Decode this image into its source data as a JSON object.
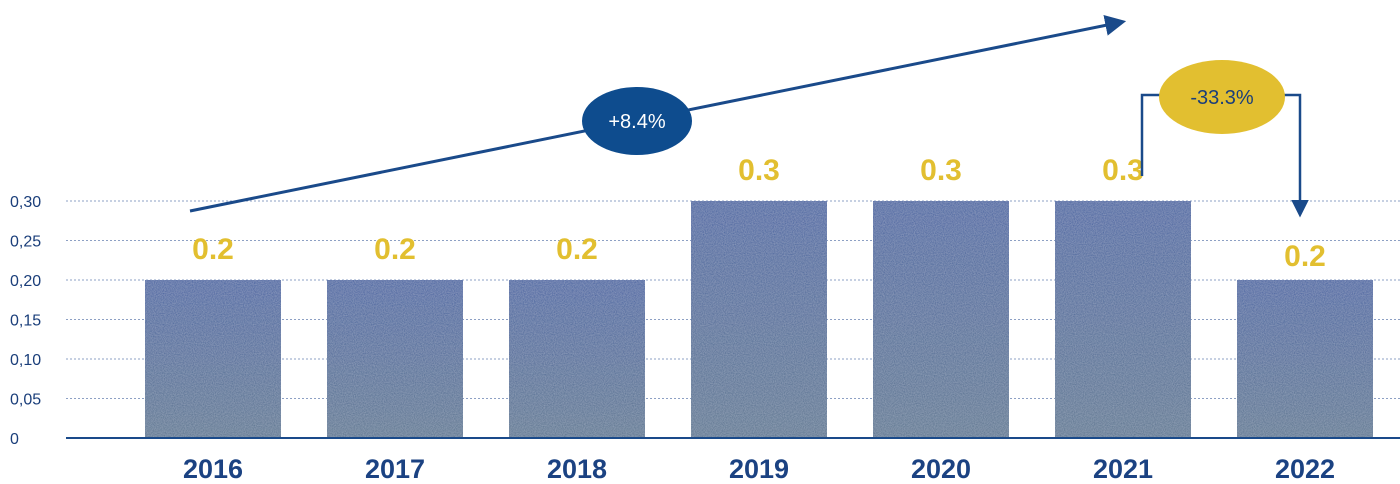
{
  "chart_data": {
    "type": "bar",
    "categories": [
      "2016",
      "2017",
      "2018",
      "2019",
      "2020",
      "2021",
      "2022"
    ],
    "values": [
      0.2,
      0.2,
      0.2,
      0.3,
      0.3,
      0.3,
      0.2
    ],
    "data_labels": [
      "0.2",
      "0.2",
      "0.2",
      "0.3",
      "0.3",
      "0.3",
      "0.2"
    ],
    "y_ticks": [
      "0",
      "0,05",
      "0,10",
      "0,15",
      "0,20",
      "0,25",
      "0,30"
    ],
    "ylim": [
      0,
      0.3
    ],
    "grid": true,
    "legend": "none",
    "title": "",
    "xlabel": "",
    "ylabel": "",
    "annotations": {
      "growth": {
        "label": "+8.4%",
        "from": "2016",
        "to": "2022"
      },
      "change": {
        "label": "-33.3%",
        "from": "2021",
        "to": "2022"
      }
    }
  },
  "colors": {
    "bar": "#3d5e9c",
    "bar_noise": "#6b8a74",
    "data_label": "#e2bf30",
    "axis": "#1a4a8a",
    "growth_pill": "#0e4c8e",
    "growth_text": "#ffffff",
    "change_pill": "#e2bf30",
    "change_text": "#1a3e7a",
    "arrow": "#1a4a8a"
  }
}
